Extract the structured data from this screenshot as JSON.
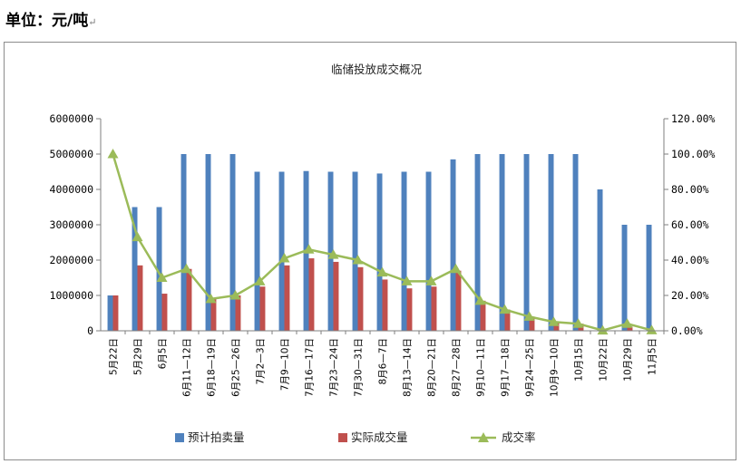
{
  "unit_label": "单位：元/吨",
  "unit_mark": "↵",
  "chart_data": {
    "type": "bar",
    "title": "临储投放成交概况",
    "categories": [
      "5月22日",
      "5月29日",
      "6月5日",
      "6月11—12日",
      "6月18—19日",
      "6月25—26日",
      "7月2—3日",
      "7月9—10日",
      "7月16—17日",
      "7月23—24日",
      "7月30—31日",
      "8月6—7日",
      "8月13—14日",
      "8月20—21日",
      "8月27—28日",
      "9月10—11日",
      "9月17—18日",
      "9月24—25日",
      "10月9—10日",
      "10月15日",
      "10月22日",
      "10月29日",
      "11月5日"
    ],
    "series": [
      {
        "name": "预计拍卖量",
        "type": "bar",
        "axis": "left",
        "color": "#4f81bd",
        "values": [
          1000000,
          3500000,
          3500000,
          5000000,
          5000000,
          5000000,
          4500000,
          4500000,
          4520000,
          4500000,
          4500000,
          4450000,
          4500000,
          4500000,
          4850000,
          5000000,
          5000000,
          5000000,
          5000000,
          5000000,
          4000000,
          3000000,
          3000000
        ]
      },
      {
        "name": "实际成交量",
        "type": "bar",
        "axis": "left",
        "color": "#c0504d",
        "values": [
          1000000,
          1850000,
          1050000,
          1750000,
          900000,
          1000000,
          1250000,
          1850000,
          2050000,
          1950000,
          1800000,
          1450000,
          1200000,
          1250000,
          1700000,
          850000,
          600000,
          400000,
          250000,
          200000,
          10000,
          120000,
          10000
        ]
      },
      {
        "name": "成交率",
        "type": "line",
        "axis": "right",
        "color": "#9bbb59",
        "values": [
          100,
          53,
          30,
          35,
          18,
          20,
          28,
          41,
          46,
          43,
          40,
          33,
          28,
          28,
          35,
          17,
          12,
          8,
          5,
          4,
          0.2,
          4,
          0.3
        ]
      }
    ],
    "y_left": {
      "min": 0,
      "max": 6000000,
      "step": 1000000,
      "tick_labels": [
        "0",
        "1000000",
        "2000000",
        "3000000",
        "4000000",
        "5000000",
        "6000000"
      ]
    },
    "y_right": {
      "min": 0,
      "max": 120,
      "step": 20,
      "tick_labels": [
        "0.00%",
        "20.00%",
        "40.00%",
        "60.00%",
        "80.00%",
        "100.00%",
        "120.00%"
      ]
    },
    "grid": false,
    "legend": "bottom"
  }
}
